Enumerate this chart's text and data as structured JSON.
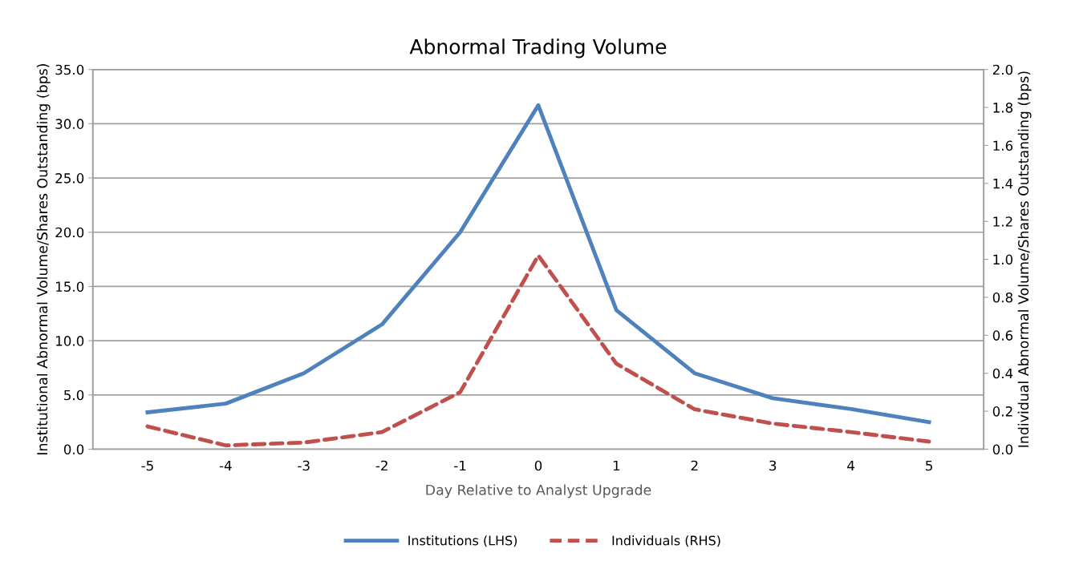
{
  "chart_data": {
    "type": "line",
    "title": "Abnormal Trading Volume",
    "xlabel": "Day Relative to Analyst Upgrade",
    "ylabel": "Institutional Abnormal Volume/Shares Outstanding (bps)",
    "y2label": "Individual Abnormal Volume/Shares Outstanding (bps)",
    "categories": [
      "-5",
      "-4",
      "-3",
      "-2",
      "-1",
      "0",
      "1",
      "2",
      "3",
      "4",
      "5"
    ],
    "series": [
      {
        "name": "Institutions (LHS)",
        "color": "#4f81bd",
        "line_style": "solid",
        "values": [
          3.4,
          4.2,
          7.0,
          11.5,
          20.0,
          31.7,
          12.8,
          7.0,
          4.7,
          3.7,
          2.5
        ]
      },
      {
        "name": "Individuals (RHS)",
        "color": "#c0504d",
        "line_style": "dashed",
        "axis": "y2",
        "values": [
          0.12,
          0.02,
          0.035,
          0.09,
          0.3,
          1.02,
          0.45,
          0.21,
          0.135,
          0.09,
          0.04
        ]
      }
    ],
    "ylim": [
      0,
      35
    ],
    "yticks": [
      {
        "value": 0,
        "label": "0.0"
      },
      {
        "value": 5,
        "label": "5.0"
      },
      {
        "value": 10,
        "label": "10.0"
      },
      {
        "value": 15,
        "label": "15.0"
      },
      {
        "value": 20,
        "label": "20.0"
      },
      {
        "value": 25,
        "label": "25.0"
      },
      {
        "value": 30,
        "label": "30.0"
      },
      {
        "value": 35,
        "label": "35.0"
      }
    ],
    "y2lim": [
      0,
      2
    ],
    "y2ticks": [
      {
        "value": 0,
        "label": "0.0"
      },
      {
        "value": 0.2,
        "label": "0.2"
      },
      {
        "value": 0.4,
        "label": "0.4"
      },
      {
        "value": 0.6,
        "label": "0.6"
      },
      {
        "value": 0.8,
        "label": "0.8"
      },
      {
        "value": 1.0,
        "label": "1.0"
      },
      {
        "value": 1.2,
        "label": "1.2"
      },
      {
        "value": 1.4,
        "label": "1.4"
      },
      {
        "value": 1.6,
        "label": "1.6"
      },
      {
        "value": 1.8,
        "label": "1.8"
      },
      {
        "value": 2.0,
        "label": "2.0"
      }
    ],
    "grid": "y",
    "legend": "bottom"
  }
}
